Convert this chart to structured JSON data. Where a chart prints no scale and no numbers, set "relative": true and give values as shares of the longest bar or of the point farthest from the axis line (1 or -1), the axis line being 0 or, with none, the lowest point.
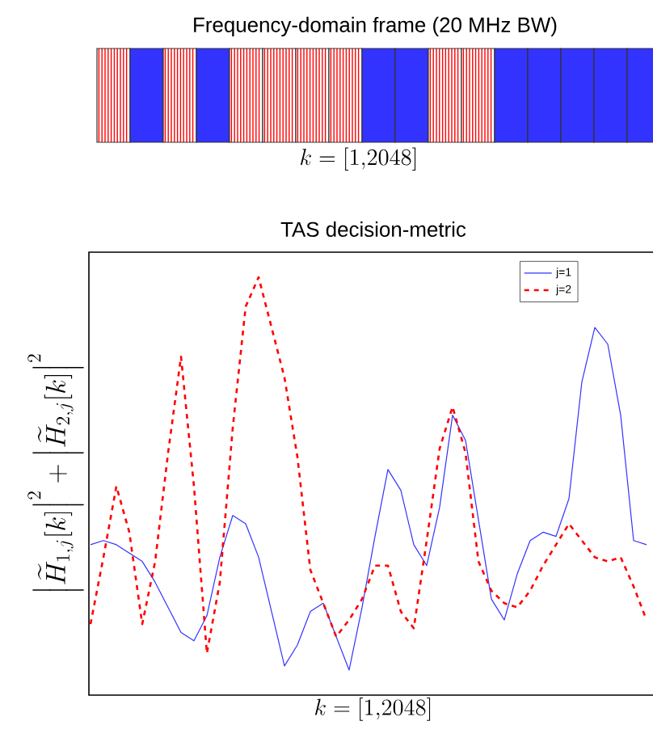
{
  "chart_data": [
    {
      "type": "other",
      "title": "Frequency-domain frame (20 MHz BW)",
      "xlabel": "k = [1{,}2048]"
    },
    {
      "type": "line",
      "title": "TAS decision-metric",
      "xlabel": "k = [1{,}2048]",
      "ylabel": "\\left|\\widetilde{H}_{1,j}[k]\\right|^{2}+\\left|\\widetilde{H}_{2,j}[k]\\right|^{2}",
      "relative": true,
      "legend": "top right",
      "categories": [
        null,
        null,
        null,
        null,
        null,
        null,
        null,
        null,
        null,
        null,
        null,
        null,
        null,
        null,
        null,
        null,
        null,
        null,
        null,
        null,
        null,
        null,
        null,
        null,
        null,
        null,
        null,
        null,
        null,
        null,
        null,
        null,
        null,
        null,
        null,
        null,
        null,
        null,
        null,
        null,
        null,
        null,
        null,
        null
      ],
      "series": [
        {
          "name": "j=1",
          "color": "#3333ff",
          "line_style": "solid",
          "values": [
            0.36,
            0.37,
            0.36,
            0.34,
            0.32,
            0.27,
            0.21,
            0.15,
            0.13,
            0.19,
            0.33,
            0.43,
            0.41,
            0.33,
            0.2,
            0.07,
            0.12,
            0.2,
            0.22,
            0.14,
            0.06,
            0.21,
            0.38,
            0.54,
            0.49,
            0.36,
            0.31,
            0.45,
            0.67,
            0.61,
            0.42,
            0.23,
            0.18,
            0.29,
            0.37,
            0.39,
            0.38,
            0.47,
            0.75,
            0.88,
            0.84,
            0.67,
            0.37,
            0.36
          ]
        },
        {
          "name": "j=2",
          "color": "#ff0000",
          "line_style": "dashed",
          "values": [
            0.17,
            0.33,
            0.5,
            0.39,
            0.17,
            0.32,
            0.58,
            0.81,
            0.5,
            0.1,
            0.27,
            0.64,
            0.93,
            1.0,
            0.88,
            0.76,
            0.57,
            0.3,
            0.22,
            0.14,
            0.18,
            0.23,
            0.31,
            0.31,
            0.2,
            0.16,
            0.37,
            0.59,
            0.69,
            0.58,
            0.32,
            0.25,
            0.22,
            0.21,
            0.25,
            0.31,
            0.36,
            0.41,
            0.37,
            0.33,
            0.32,
            0.33,
            0.26,
            0.18
          ]
        }
      ]
    }
  ]
}
